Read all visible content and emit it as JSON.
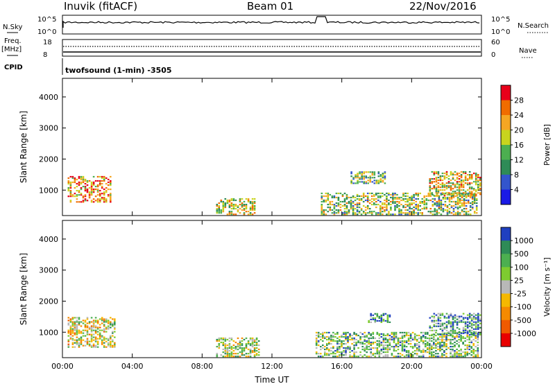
{
  "header": {
    "station": "Inuvik (fitACF)",
    "beam": "Beam 01",
    "date": "22/Nov/2016"
  },
  "control_panel": {
    "left_label_1": "N.Sky",
    "left_label_2a": "Freq.",
    "left_label_2b": "[MHz]",
    "left_label_3": "CPID",
    "right_label_1": "N.Search",
    "right_label_2": "Nave",
    "noise_ticks": [
      "10^5",
      "10^0"
    ],
    "freq_ticks": [
      "18",
      "8"
    ],
    "nave_ticks": [
      "60",
      "0"
    ],
    "cpid_text": "twofsound (1-min) -3505"
  },
  "colors": {
    "power_scale": [
      "#1a1ae6",
      "#3355cc",
      "#2e8b57",
      "#4caf50",
      "#c8d41e",
      "#f5a623",
      "#f06c00",
      "#e8001a"
    ],
    "velocity_scale": [
      "#2040c0",
      "#2e8b57",
      "#4caf50",
      "#7ecb30",
      "#b8b8b8",
      "#f5b800",
      "#f58a00",
      "#f05a00",
      "#e80000"
    ]
  },
  "chart_data": [
    {
      "type": "heatmap",
      "name": "power-panel",
      "ylabel": "Slant Range [km]",
      "xlabel": "",
      "xlim": [
        0,
        24
      ],
      "ylim": [
        180,
        4600
      ],
      "y_ticks": [
        1000,
        2000,
        3000,
        4000
      ],
      "x_ticks": [
        "00:00",
        "04:00",
        "08:00",
        "12:00",
        "16:00",
        "20:00",
        "00:00"
      ],
      "colorbar_label": "Power [dB]",
      "colorbar_ticks": [
        "4",
        "8",
        "12",
        "16",
        "20",
        "24",
        "28"
      ],
      "colorbar_range": [
        0,
        32
      ],
      "regions": [
        {
          "t0": 0.3,
          "t1": 2.8,
          "r0": 600,
          "r1": 1450,
          "level": 0.75
        },
        {
          "t0": 8.8,
          "t1": 11.0,
          "r0": 200,
          "r1": 700,
          "level": 0.55
        },
        {
          "t0": 14.8,
          "t1": 23.8,
          "r0": 200,
          "r1": 900,
          "level": 0.5
        },
        {
          "t0": 16.5,
          "t1": 18.5,
          "r0": 1200,
          "r1": 1600,
          "level": 0.45
        },
        {
          "t0": 21.0,
          "t1": 23.9,
          "r0": 800,
          "r1": 1600,
          "level": 0.6
        }
      ]
    },
    {
      "type": "heatmap",
      "name": "velocity-panel",
      "ylabel": "Slant Range [km]",
      "xlabel": "Time UT",
      "xlim": [
        0,
        24
      ],
      "ylim": [
        180,
        4600
      ],
      "y_ticks": [
        1000,
        2000,
        3000,
        4000
      ],
      "x_ticks": [
        "00:00",
        "04:00",
        "08:00",
        "12:00",
        "16:00",
        "20:00",
        "00:00"
      ],
      "colorbar_label": "Velocity [m s⁻¹]",
      "colorbar_ticks": [
        "1000",
        "500",
        "100",
        "25",
        "-25",
        "-100",
        "-500",
        "-1000"
      ],
      "colorbar_range": [
        -1000,
        1000
      ],
      "regions": [
        {
          "t0": 0.3,
          "t1": 3.0,
          "r0": 500,
          "r1": 1450,
          "level": 0.5
        },
        {
          "t0": 8.8,
          "t1": 11.2,
          "r0": 200,
          "r1": 800,
          "level": 0.45
        },
        {
          "t0": 14.5,
          "t1": 23.8,
          "r0": 200,
          "r1": 1000,
          "level": 0.35
        },
        {
          "t0": 17.5,
          "t1": 18.8,
          "r0": 1300,
          "r1": 1600,
          "level": 0.2
        },
        {
          "t0": 21.0,
          "t1": 23.9,
          "r0": 900,
          "r1": 1600,
          "level": 0.25
        }
      ]
    }
  ]
}
